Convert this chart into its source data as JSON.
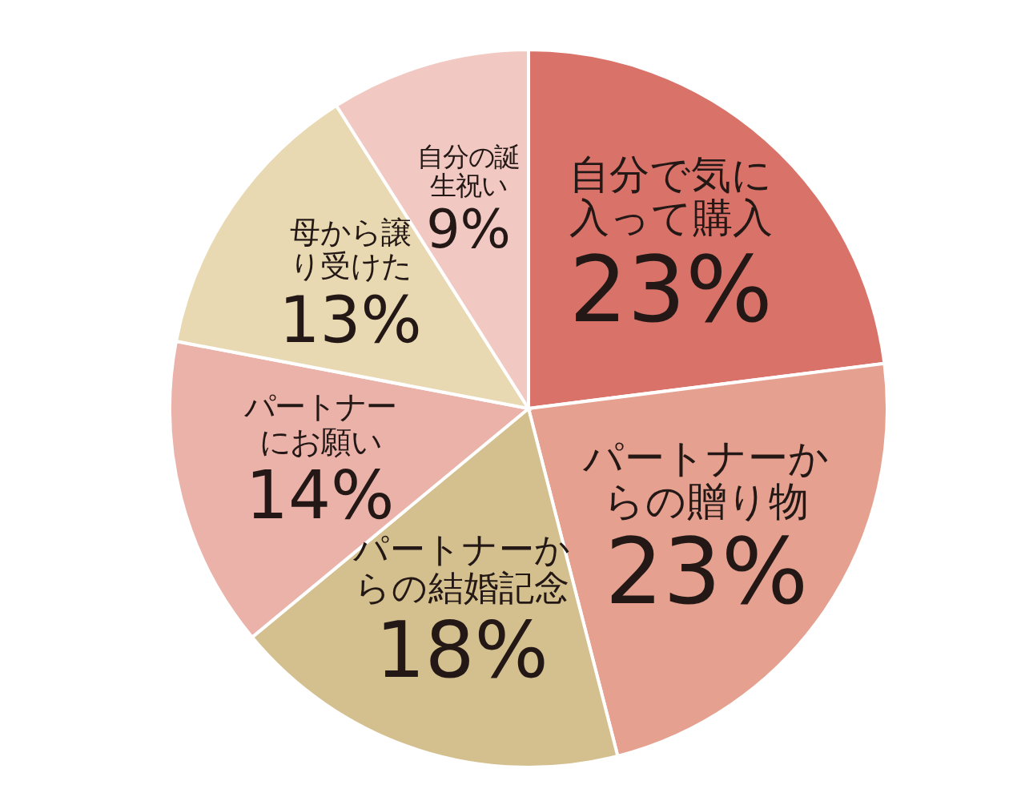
{
  "chart_data": {
    "type": "pie",
    "categories": [
      "自分で気に入って購入",
      "パートナーからの贈り物",
      "パートナーからの結婚記念",
      "パートナーにお願い",
      "母から譲り受けた",
      "自分の誕生祝い"
    ],
    "values": [
      23,
      23,
      18,
      14,
      13,
      9
    ],
    "value_labels": [
      "23%",
      "23%",
      "18%",
      "14%",
      "13%",
      "9%"
    ],
    "colors": [
      "#d9736a",
      "#e5a08f",
      "#d4c08f",
      "#ebb2aa",
      "#e9d9b2",
      "#f1c9c2"
    ]
  }
}
